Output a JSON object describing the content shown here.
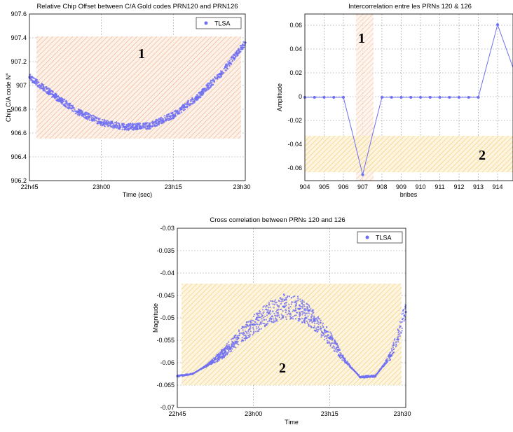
{
  "colors": {
    "series": "#6f6ff2",
    "hatch_orange": "#f0a070",
    "hatch_yellow": "#f2c25a",
    "axes": "#000000",
    "grid": "#7a7a7a"
  },
  "chart_data": [
    {
      "type": "scatter",
      "title": "Relative Chip Offset between C/A Gold codes PRN120 and PRN126",
      "xlabel": "Time (sec)",
      "ylabel": "Chip C/A code N°",
      "x_ticks": [
        "22h45",
        "23h00",
        "23h15",
        "23h30"
      ],
      "xlim": [
        0,
        45
      ],
      "y_ticks": [
        "907.6",
        "907.4",
        "907.2",
        "907",
        "906.8",
        "906.6",
        "906.4",
        "906.2"
      ],
      "ylim": [
        906.2,
        907.6
      ],
      "grid": true,
      "legend": "top-right",
      "series": [
        {
          "name": "TLSA",
          "x": [
            0,
            5,
            10,
            15,
            20,
            25,
            30,
            35,
            40,
            45
          ],
          "y": [
            907.07,
            906.92,
            906.78,
            906.69,
            906.65,
            906.66,
            906.75,
            906.9,
            907.1,
            907.36
          ]
        }
      ],
      "shaded_regions": [
        {
          "label": "1",
          "ymin": 906.56,
          "ymax": 907.41,
          "color": "orange"
        }
      ]
    },
    {
      "type": "line",
      "title": "Intercorrelation entre les PRNs 120 & 126",
      "xlabel": "bribes",
      "ylabel": "Amplitude",
      "x_ticks": [
        "904",
        "905",
        "906",
        "907",
        "908",
        "909",
        "910",
        "911",
        "912",
        "913",
        "914"
      ],
      "xlim": [
        904,
        914.8
      ],
      "y_ticks": [
        "0.06",
        "0.04",
        "0.02",
        "0",
        "-0.02",
        "-0.04",
        "-0.06"
      ],
      "ylim": [
        -0.07,
        0.07
      ],
      "grid": true,
      "series": [
        {
          "x": [
            904,
            904.5,
            905,
            905.5,
            906,
            906.5,
            907,
            907.5,
            908,
            908.5,
            909,
            909.5,
            910,
            910.5,
            911,
            911.5,
            912,
            912.5,
            913,
            914,
            914.8
          ],
          "y": [
            0,
            0,
            0,
            0,
            0,
            -0.032,
            -0.065,
            -0.032,
            0,
            0,
            0,
            0,
            0,
            0,
            0,
            0,
            0,
            0,
            0,
            0.061,
            0.025
          ]
        }
      ],
      "shaded_regions": [
        {
          "label": "1",
          "xmin": 906.8,
          "xmax": 907.2,
          "color": "orange"
        },
        {
          "label": "2",
          "ymin": -0.065,
          "ymax": -0.034,
          "color": "yellow"
        }
      ]
    },
    {
      "type": "scatter",
      "title": "Cross correlation between PRNs 120 and 126",
      "xlabel": "Time",
      "ylabel": "Magnitude",
      "x_ticks": [
        "22h45",
        "23h00",
        "23h15",
        "23h30"
      ],
      "xlim": [
        0,
        45
      ],
      "y_ticks": [
        "-0.03",
        "-0.035",
        "-0.04",
        "-0.045",
        "-0.05",
        "-0.055",
        "-0.06",
        "-0.065",
        "-0.07"
      ],
      "ylim": [
        -0.07,
        -0.03
      ],
      "grid": true,
      "legend": "top-right",
      "series": [
        {
          "name": "TLSA",
          "x": [
            0,
            3,
            6,
            9,
            12,
            15,
            18,
            21,
            24,
            27,
            30,
            33,
            36,
            39,
            42,
            45
          ],
          "y": [
            -0.063,
            -0.0625,
            -0.0605,
            -0.058,
            -0.0545,
            -0.0515,
            -0.049,
            -0.0475,
            -0.048,
            -0.0505,
            -0.0545,
            -0.0595,
            -0.0632,
            -0.063,
            -0.0585,
            -0.0487
          ]
        }
      ],
      "shaded_regions": [
        {
          "label": "2",
          "ymin": -0.065,
          "ymax": -0.0425,
          "color": "yellow"
        }
      ]
    }
  ]
}
